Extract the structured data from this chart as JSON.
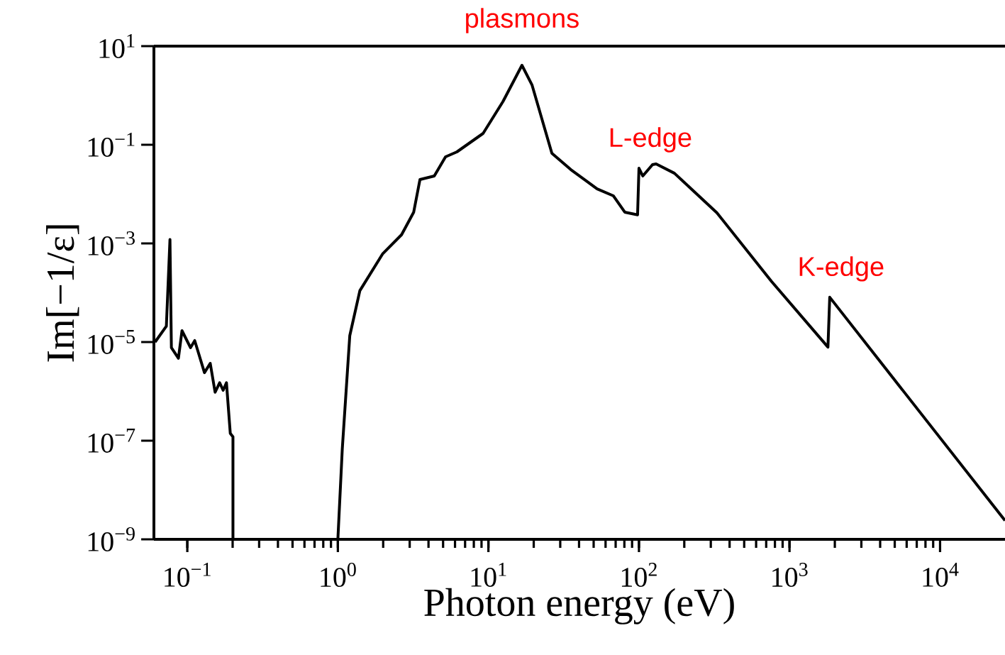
{
  "chart_data": {
    "type": "line",
    "xlabel": "Photon energy (eV)",
    "ylabel": "Im[−1/ε]",
    "log": "xy",
    "marker": "none",
    "line_style": "solid",
    "xlim": [
      0.06,
      27000
    ],
    "ylim": [
      1e-09,
      10
    ],
    "xticks": [
      {
        "value": 0.1,
        "label": "10$^{−1}$"
      },
      {
        "value": 1,
        "label": "10$^{0}$"
      },
      {
        "value": 10,
        "label": "10$^{1}$"
      },
      {
        "value": 100,
        "label": "10$^{2}$"
      },
      {
        "value": 1000,
        "label": "10$^{3}$"
      },
      {
        "value": 10000,
        "label": "10$^{4}$"
      }
    ],
    "yticks": [
      {
        "value": 1e-09,
        "label": "10$^{−9}$"
      },
      {
        "value": 1e-07,
        "label": "10$^{−7}$"
      },
      {
        "value": 1e-05,
        "label": "10$^{−5}$"
      },
      {
        "value": 0.001,
        "label": "10$^{−3}$"
      },
      {
        "value": 0.1,
        "label": "10$^{−1}$"
      },
      {
        "value": 10,
        "label": "10$^{1}$"
      }
    ],
    "series": [
      {
        "color": "#000000",
        "x": [
          0.0611,
          0.0726,
          0.0767,
          0.0784,
          0.0873,
          0.0922,
          0.105,
          0.112,
          0.13,
          0.142,
          0.153,
          0.164,
          0.173,
          0.182,
          0.193,
          0.201,
          0.201,
          0.5,
          1.0,
          1.07,
          1.2,
          1.4,
          1.98,
          2.65,
          3.19,
          3.51,
          4.37,
          5.19,
          6.18,
          9.22,
          12.5,
          16.7,
          19.5,
          26.4,
          35.3,
          52.7,
          67.7,
          80.5,
          97.9,
          100,
          106,
          123,
          130,
          172,
          329,
          759,
          1800,
          1850,
          27000
        ],
        "values": [
          1e-05,
          2.1e-05,
          0.0012,
          7.7e-06,
          4.7e-06,
          1.7e-05,
          7.7e-06,
          1.07e-05,
          2.4e-06,
          3.7e-06,
          9.6e-07,
          1.5e-06,
          1.05e-06,
          1.5e-06,
          1.4e-07,
          1.2e-07,
          1e-09,
          null,
          1e-09,
          6.8e-08,
          1.35e-05,
          0.00011,
          0.00061,
          0.0015,
          0.0043,
          0.0197,
          0.0233,
          0.0569,
          0.0718,
          0.17,
          0.755,
          4.09,
          1.62,
          0.0671,
          0.0313,
          0.0128,
          0.0092,
          0.0043,
          0.0038,
          0.0335,
          0.0233,
          0.0395,
          0.0409,
          0.0265,
          0.0042,
          0.00017,
          7.9e-06,
          8.1e-05,
          2.4e-09
        ]
      }
    ],
    "annotations": [
      {
        "text": "plasmons",
        "x": 16.7,
        "y": 4.09
      },
      {
        "text": "L-edge",
        "x": 100,
        "y": 0.0335
      },
      {
        "text": "K-edge",
        "x": 1850,
        "y": 8.1e-05
      }
    ]
  }
}
